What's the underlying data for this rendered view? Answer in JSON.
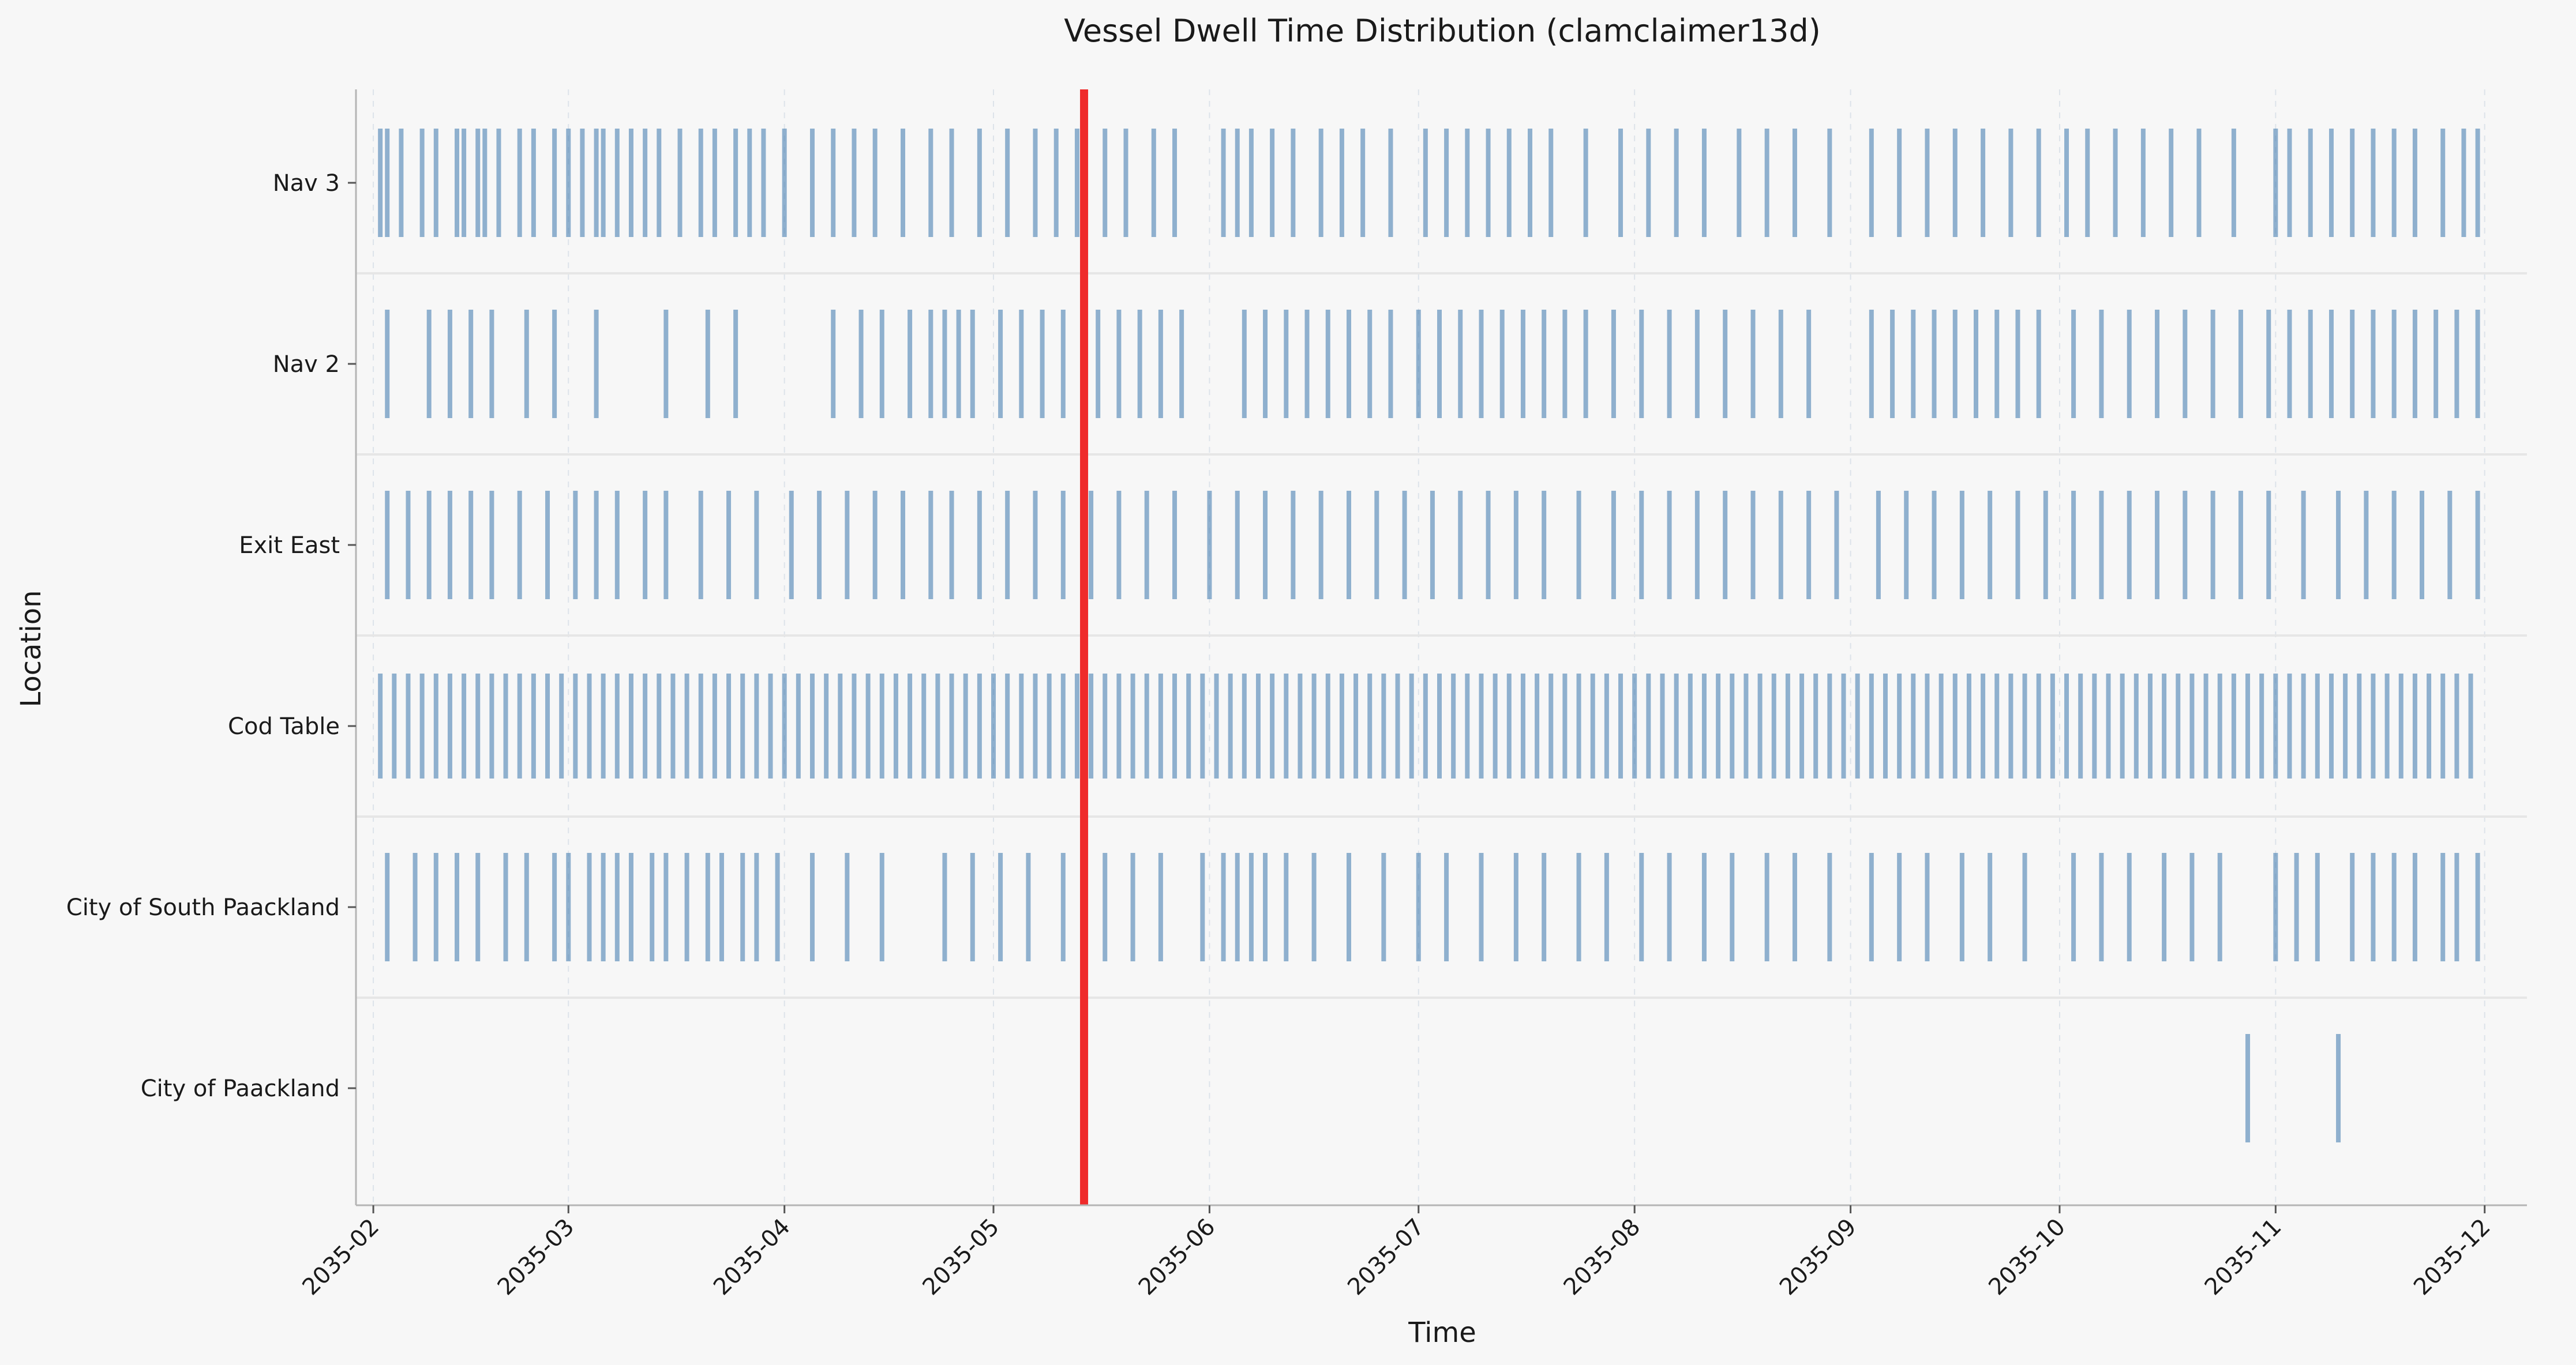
{
  "chart_data": {
    "type": "event-strip",
    "title": "Vessel Dwell Time Distribution (clamclaimer13d)",
    "xlabel": "Time",
    "ylabel": "Location",
    "xlim": [
      "2035-01-31",
      "2035-12-05"
    ],
    "x_ticks": [
      "2035-02",
      "2035-03",
      "2035-04",
      "2035-05",
      "2035-06",
      "2035-07",
      "2035-08",
      "2035-09",
      "2035-10",
      "2035-11",
      "2035-12"
    ],
    "categories": [
      "Nav 3",
      "Nav 2",
      "Exit East",
      "Cod Table",
      "City of South Paackland",
      "City of Paackland"
    ],
    "grid": "vertical dashed",
    "colors": {
      "events": "#4a80b3",
      "marker": "#ef2b2b",
      "background": "#f7f7f7"
    },
    "reference_line": {
      "x": "2035-05-14"
    },
    "events": [
      {
        "location": "City of Paackland",
        "dates": [
          "2035-10-28",
          "2035-11-10"
        ]
      },
      {
        "location": "City of South Paackland",
        "dates": [
          "2035-02-03",
          "2035-02-07",
          "2035-02-10",
          "2035-02-13",
          "2035-02-16",
          "2035-02-20",
          "2035-02-23",
          "2035-02-27",
          "2035-03-01",
          "2035-03-04",
          "2035-03-06",
          "2035-03-08",
          "2035-03-10",
          "2035-03-13",
          "2035-03-15",
          "2035-03-18",
          "2035-03-21",
          "2035-03-23",
          "2035-03-26",
          "2035-03-28",
          "2035-03-31",
          "2035-04-05",
          "2035-04-10",
          "2035-04-15",
          "2035-04-24",
          "2035-04-28",
          "2035-05-02",
          "2035-05-06",
          "2035-05-11",
          "2035-05-17",
          "2035-05-21",
          "2035-05-25",
          "2035-05-31",
          "2035-06-03",
          "2035-06-05",
          "2035-06-07",
          "2035-06-09",
          "2035-06-12",
          "2035-06-16",
          "2035-06-21",
          "2035-06-26",
          "2035-07-01",
          "2035-07-05",
          "2035-07-10",
          "2035-07-15",
          "2035-07-19",
          "2035-07-24",
          "2035-07-28",
          "2035-08-02",
          "2035-08-06",
          "2035-08-11",
          "2035-08-15",
          "2035-08-20",
          "2035-08-24",
          "2035-08-29",
          "2035-09-04",
          "2035-09-08",
          "2035-09-12",
          "2035-09-17",
          "2035-09-21",
          "2035-09-26",
          "2035-10-03",
          "2035-10-07",
          "2035-10-11",
          "2035-10-16",
          "2035-10-20",
          "2035-10-24",
          "2035-11-01",
          "2035-11-04",
          "2035-11-07",
          "2035-11-12",
          "2035-11-15",
          "2035-11-18",
          "2035-11-21",
          "2035-11-25",
          "2035-11-27",
          "2035-11-30"
        ]
      },
      {
        "location": "Nav 3",
        "dates": [
          "2035-02-02",
          "2035-02-03",
          "2035-02-05",
          "2035-02-08",
          "2035-02-10",
          "2035-02-13",
          "2035-02-14",
          "2035-02-16",
          "2035-02-17",
          "2035-02-19",
          "2035-02-22",
          "2035-02-24",
          "2035-02-27",
          "2035-03-01",
          "2035-03-03",
          "2035-03-05",
          "2035-03-06",
          "2035-03-08",
          "2035-03-10",
          "2035-03-12",
          "2035-03-14",
          "2035-03-17",
          "2035-03-20",
          "2035-03-22",
          "2035-03-25",
          "2035-03-27",
          "2035-03-29",
          "2035-04-01",
          "2035-04-05",
          "2035-04-08",
          "2035-04-11",
          "2035-04-14",
          "2035-04-18",
          "2035-04-22",
          "2035-04-25",
          "2035-04-29",
          "2035-05-03",
          "2035-05-07",
          "2035-05-10",
          "2035-05-13",
          "2035-05-17",
          "2035-05-20",
          "2035-05-24",
          "2035-05-27",
          "2035-06-03",
          "2035-06-05",
          "2035-06-07",
          "2035-06-10",
          "2035-06-13",
          "2035-06-17",
          "2035-06-20",
          "2035-06-23",
          "2035-06-27",
          "2035-07-02",
          "2035-07-05",
          "2035-07-08",
          "2035-07-11",
          "2035-07-14",
          "2035-07-17",
          "2035-07-20",
          "2035-07-25",
          "2035-07-30",
          "2035-08-03",
          "2035-08-07",
          "2035-08-11",
          "2035-08-16",
          "2035-08-20",
          "2035-08-24",
          "2035-08-29",
          "2035-09-04",
          "2035-09-08",
          "2035-09-12",
          "2035-09-16",
          "2035-09-20",
          "2035-09-24",
          "2035-09-28",
          "2035-10-02",
          "2035-10-05",
          "2035-10-09",
          "2035-10-13",
          "2035-10-17",
          "2035-10-21",
          "2035-10-26",
          "2035-11-01",
          "2035-11-03",
          "2035-11-06",
          "2035-11-09",
          "2035-11-12",
          "2035-11-15",
          "2035-11-18",
          "2035-11-21",
          "2035-11-25",
          "2035-11-28",
          "2035-11-30"
        ]
      },
      {
        "location": "Nav 2",
        "dates": [
          "2035-02-03",
          "2035-02-09",
          "2035-02-12",
          "2035-02-15",
          "2035-02-18",
          "2035-02-23",
          "2035-02-27",
          "2035-03-05",
          "2035-03-15",
          "2035-03-21",
          "2035-03-25",
          "2035-04-08",
          "2035-04-12",
          "2035-04-15",
          "2035-04-19",
          "2035-04-22",
          "2035-04-24",
          "2035-04-26",
          "2035-04-28",
          "2035-05-02",
          "2035-05-05",
          "2035-05-08",
          "2035-05-11",
          "2035-05-14",
          "2035-05-16",
          "2035-05-19",
          "2035-05-22",
          "2035-05-25",
          "2035-05-28",
          "2035-06-06",
          "2035-06-09",
          "2035-06-12",
          "2035-06-15",
          "2035-06-18",
          "2035-06-21",
          "2035-06-24",
          "2035-06-27",
          "2035-07-01",
          "2035-07-04",
          "2035-07-07",
          "2035-07-10",
          "2035-07-13",
          "2035-07-16",
          "2035-07-19",
          "2035-07-22",
          "2035-07-25",
          "2035-07-29",
          "2035-08-02",
          "2035-08-06",
          "2035-08-10",
          "2035-08-14",
          "2035-08-18",
          "2035-08-22",
          "2035-08-26",
          "2035-09-04",
          "2035-09-07",
          "2035-09-10",
          "2035-09-13",
          "2035-09-16",
          "2035-09-19",
          "2035-09-22",
          "2035-09-25",
          "2035-09-28",
          "2035-10-03",
          "2035-10-07",
          "2035-10-11",
          "2035-10-15",
          "2035-10-19",
          "2035-10-23",
          "2035-10-27",
          "2035-10-31",
          "2035-11-03",
          "2035-11-06",
          "2035-11-09",
          "2035-11-12",
          "2035-11-15",
          "2035-11-18",
          "2035-11-21",
          "2035-11-24",
          "2035-11-27",
          "2035-11-30"
        ]
      },
      {
        "location": "Exit East",
        "dates": [
          "2035-02-03",
          "2035-02-06",
          "2035-02-09",
          "2035-02-12",
          "2035-02-15",
          "2035-02-18",
          "2035-02-22",
          "2035-02-26",
          "2035-03-02",
          "2035-03-05",
          "2035-03-08",
          "2035-03-12",
          "2035-03-15",
          "2035-03-20",
          "2035-03-24",
          "2035-03-28",
          "2035-04-02",
          "2035-04-06",
          "2035-04-10",
          "2035-04-14",
          "2035-04-18",
          "2035-04-22",
          "2035-04-25",
          "2035-04-29",
          "2035-05-03",
          "2035-05-07",
          "2035-05-11",
          "2035-05-15",
          "2035-05-19",
          "2035-05-23",
          "2035-05-27",
          "2035-06-01",
          "2035-06-05",
          "2035-06-09",
          "2035-06-13",
          "2035-06-17",
          "2035-06-21",
          "2035-06-25",
          "2035-06-29",
          "2035-07-03",
          "2035-07-07",
          "2035-07-11",
          "2035-07-15",
          "2035-07-19",
          "2035-07-24",
          "2035-07-29",
          "2035-08-02",
          "2035-08-06",
          "2035-08-10",
          "2035-08-14",
          "2035-08-18",
          "2035-08-22",
          "2035-08-26",
          "2035-08-30",
          "2035-09-05",
          "2035-09-09",
          "2035-09-13",
          "2035-09-17",
          "2035-09-21",
          "2035-09-25",
          "2035-09-29",
          "2035-10-03",
          "2035-10-07",
          "2035-10-11",
          "2035-10-15",
          "2035-10-19",
          "2035-10-23",
          "2035-10-27",
          "2035-10-31",
          "2035-11-05",
          "2035-11-10",
          "2035-11-14",
          "2035-11-18",
          "2035-11-22",
          "2035-11-26",
          "2035-11-30"
        ]
      },
      {
        "location": "Cod Table",
        "dates": [
          "2035-02-02",
          "2035-02-04",
          "2035-02-06",
          "2035-02-08",
          "2035-02-10",
          "2035-02-12",
          "2035-02-14",
          "2035-02-16",
          "2035-02-18",
          "2035-02-20",
          "2035-02-22",
          "2035-02-24",
          "2035-02-26",
          "2035-02-28",
          "2035-03-02",
          "2035-03-04",
          "2035-03-06",
          "2035-03-08",
          "2035-03-10",
          "2035-03-12",
          "2035-03-14",
          "2035-03-16",
          "2035-03-18",
          "2035-03-20",
          "2035-03-22",
          "2035-03-24",
          "2035-03-26",
          "2035-03-28",
          "2035-03-30",
          "2035-04-01",
          "2035-04-03",
          "2035-04-05",
          "2035-04-07",
          "2035-04-09",
          "2035-04-11",
          "2035-04-13",
          "2035-04-15",
          "2035-04-17",
          "2035-04-19",
          "2035-04-21",
          "2035-04-23",
          "2035-04-25",
          "2035-04-27",
          "2035-04-29",
          "2035-05-01",
          "2035-05-03",
          "2035-05-05",
          "2035-05-07",
          "2035-05-09",
          "2035-05-11",
          "2035-05-13",
          "2035-05-15",
          "2035-05-17",
          "2035-05-19",
          "2035-05-21",
          "2035-05-23",
          "2035-05-25",
          "2035-05-27",
          "2035-05-29",
          "2035-05-31",
          "2035-06-02",
          "2035-06-04",
          "2035-06-06",
          "2035-06-08",
          "2035-06-10",
          "2035-06-12",
          "2035-06-14",
          "2035-06-16",
          "2035-06-18",
          "2035-06-20",
          "2035-06-22",
          "2035-06-24",
          "2035-06-26",
          "2035-06-28",
          "2035-06-30",
          "2035-07-02",
          "2035-07-04",
          "2035-07-06",
          "2035-07-08",
          "2035-07-10",
          "2035-07-12",
          "2035-07-14",
          "2035-07-16",
          "2035-07-18",
          "2035-07-20",
          "2035-07-22",
          "2035-07-24",
          "2035-07-26",
          "2035-07-28",
          "2035-07-30",
          "2035-08-01",
          "2035-08-03",
          "2035-08-05",
          "2035-08-07",
          "2035-08-09",
          "2035-08-11",
          "2035-08-13",
          "2035-08-15",
          "2035-08-17",
          "2035-08-19",
          "2035-08-21",
          "2035-08-23",
          "2035-08-25",
          "2035-08-27",
          "2035-08-29",
          "2035-08-31",
          "2035-09-02",
          "2035-09-04",
          "2035-09-06",
          "2035-09-08",
          "2035-09-10",
          "2035-09-12",
          "2035-09-14",
          "2035-09-16",
          "2035-09-18",
          "2035-09-20",
          "2035-09-22",
          "2035-09-24",
          "2035-09-26",
          "2035-09-28",
          "2035-09-30",
          "2035-10-02",
          "2035-10-04",
          "2035-10-06",
          "2035-10-08",
          "2035-10-10",
          "2035-10-12",
          "2035-10-14",
          "2035-10-16",
          "2035-10-18",
          "2035-10-20",
          "2035-10-22",
          "2035-10-24",
          "2035-10-26",
          "2035-10-28",
          "2035-10-30",
          "2035-11-01",
          "2035-11-03",
          "2035-11-05",
          "2035-11-07",
          "2035-11-09",
          "2035-11-11",
          "2035-11-13",
          "2035-11-15",
          "2035-11-17",
          "2035-11-19",
          "2035-11-21",
          "2035-11-23",
          "2035-11-25",
          "2035-11-27",
          "2035-11-29"
        ]
      }
    ]
  }
}
